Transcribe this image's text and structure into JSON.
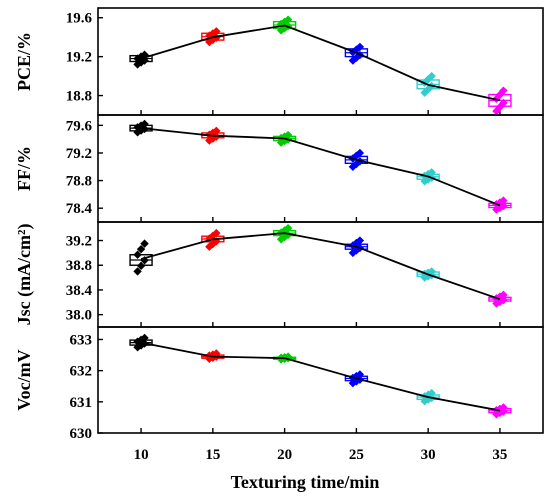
{
  "chart_data": {
    "type": "box",
    "xlabel": "Texturing time/min",
    "x_ticks": [
      "10",
      "15",
      "20",
      "25",
      "30",
      "35"
    ],
    "x": [
      10,
      15,
      20,
      25,
      30,
      35
    ],
    "xlim": [
      7,
      38
    ],
    "colors": [
      "#000000",
      "#ff0000",
      "#00cc00",
      "#0000ff",
      "#33cccc",
      "#ff00ff"
    ],
    "panels": [
      {
        "ylabel": "PCE/%",
        "ylim": [
          18.6,
          19.7
        ],
        "yticks": [
          "19.6",
          "19.2",
          "18.8"
        ],
        "ytick_values": [
          19.6,
          19.2,
          18.8
        ],
        "means": [
          19.18,
          19.4,
          19.52,
          19.24,
          18.91,
          18.75
        ],
        "boxes": [
          [
            19.15,
            19.21
          ],
          [
            19.37,
            19.44
          ],
          [
            19.49,
            19.56
          ],
          [
            19.2,
            19.28
          ],
          [
            18.87,
            18.96
          ],
          [
            18.69,
            18.81
          ]
        ],
        "points": [
          [
            19.12,
            19.22
          ],
          [
            19.35,
            19.46
          ],
          [
            19.47,
            19.58
          ],
          [
            19.16,
            19.3
          ],
          [
            18.83,
            19.0
          ],
          [
            18.64,
            18.85
          ]
        ]
      },
      {
        "ylabel": "FF/%",
        "ylim": [
          78.2,
          79.75
        ],
        "yticks": [
          "79.6",
          "79.2",
          "78.8",
          "78.4"
        ],
        "ytick_values": [
          79.6,
          79.2,
          78.8,
          78.4
        ],
        "means": [
          79.56,
          79.45,
          79.41,
          79.1,
          78.86,
          78.44
        ],
        "boxes": [
          [
            79.52,
            79.6
          ],
          [
            79.42,
            79.49
          ],
          [
            79.38,
            79.44
          ],
          [
            79.05,
            79.15
          ],
          [
            78.82,
            78.89
          ],
          [
            78.41,
            78.47
          ]
        ],
        "points": [
          [
            79.5,
            79.62
          ],
          [
            79.38,
            79.52
          ],
          [
            79.35,
            79.46
          ],
          [
            79.0,
            79.2
          ],
          [
            78.79,
            78.92
          ],
          [
            78.38,
            78.51
          ]
        ]
      },
      {
        "ylabel": "Jsc (mA/cm²)",
        "ylim": [
          37.8,
          39.5
        ],
        "yticks": [
          "39.2",
          "38.8",
          "38.4",
          "38.0"
        ],
        "ytick_values": [
          39.2,
          38.8,
          38.4,
          38.0
        ],
        "means": [
          38.9,
          39.22,
          39.32,
          39.1,
          38.65,
          38.25
        ],
        "boxes": [
          [
            38.8,
            38.97
          ],
          [
            39.18,
            39.27
          ],
          [
            39.28,
            39.36
          ],
          [
            39.06,
            39.14
          ],
          [
            38.62,
            38.69
          ],
          [
            38.22,
            38.28
          ]
        ],
        "points": [
          [
            38.7,
            39.15
          ],
          [
            39.1,
            39.32
          ],
          [
            39.22,
            39.4
          ],
          [
            39.0,
            39.2
          ],
          [
            38.6,
            38.7
          ],
          [
            38.18,
            38.32
          ]
        ]
      },
      {
        "ylabel": "Voc/mV",
        "ylim": [
          630.0,
          633.4
        ],
        "yticks": [
          "633",
          "632",
          "631",
          "630"
        ],
        "ytick_values": [
          633,
          632,
          631,
          630
        ],
        "means": [
          632.9,
          632.45,
          632.4,
          631.75,
          631.15,
          630.72
        ],
        "boxes": [
          [
            632.82,
            632.98
          ],
          [
            632.4,
            632.5
          ],
          [
            632.37,
            632.43
          ],
          [
            631.68,
            631.82
          ],
          [
            631.08,
            631.22
          ],
          [
            630.65,
            630.78
          ]
        ],
        "points": [
          [
            632.75,
            633.05
          ],
          [
            632.38,
            632.55
          ],
          [
            632.36,
            632.45
          ],
          [
            631.6,
            631.88
          ],
          [
            631.02,
            631.28
          ],
          [
            630.6,
            630.82
          ]
        ]
      }
    ]
  }
}
